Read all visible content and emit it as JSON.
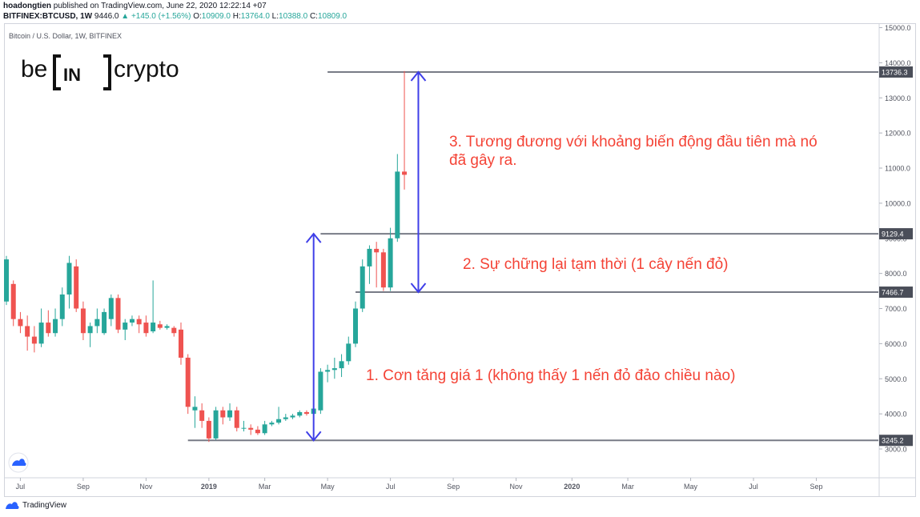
{
  "header": {
    "line1_user": "hoadongtien",
    "line1_rest": "published on TradingView.com, June 22, 2020 12:22:14 +07",
    "symbol": "BITFINEX:BTCUSD, 1W",
    "price": "9446.0",
    "change": "+145.0 (+1.56%)",
    "o_label": "O:",
    "o_value": "10909.0",
    "h_label": "H:",
    "h_value": "13764.0",
    "l_label": "L:",
    "l_value": "10388.0",
    "c_label": "C:",
    "c_value": "10809.0"
  },
  "chart_title": "Bitcoin / U.S. Dollar, 1W, BITFINEX",
  "logo": {
    "left": "be",
    "middle": "IN",
    "right": "crypto"
  },
  "footer": {
    "brand": "TradingView"
  },
  "annotations": {
    "note1": "1. Cơn tăng giá 1 (không thấy 1 nến đỏ đảo chiều nào)",
    "note2": "2. Sự chững lại tạm thời (1 cây nến đỏ)",
    "note3_line1": "3. Tương đương với khoảng biến động đầu tiên mà nó",
    "note3_line2": "đã gây ra."
  },
  "colors": {
    "up": "#26a69a",
    "down": "#ef5350",
    "arrow": "#3f3fe8",
    "level": "#787b86",
    "note": "#f44336"
  },
  "chart_data": {
    "type": "candlestick",
    "title": "Bitcoin / U.S. Dollar, 1W, BITFINEX",
    "ylim": [
      2600,
      15200
    ],
    "y_ticks": [
      3000,
      4000,
      5000,
      6000,
      7000,
      8000,
      9000,
      10000,
      11000,
      12000,
      13000,
      14000,
      15000
    ],
    "y_tick_labels": [
      "3000.0",
      "4000.0",
      "5000.0",
      "6000.0",
      "7000.0",
      "8000.0",
      "9000.0",
      "10000.0",
      "11000.0",
      "12000.0",
      "13000.0",
      "14000.0",
      "15000.0"
    ],
    "x_ticks": [
      "Jul",
      "Sep",
      "Nov",
      "2019",
      "Mar",
      "May",
      "Jul",
      "Sep",
      "Nov",
      "2020",
      "Mar",
      "May",
      "Jul",
      "Sep"
    ],
    "x_tick_weeks": [
      2,
      11,
      20,
      29,
      37,
      46,
      55,
      64,
      73,
      81,
      89,
      98,
      107,
      116
    ],
    "grid": false,
    "levels": [
      {
        "value": 13736.3,
        "label": "13736.3",
        "from_week": 46
      },
      {
        "value": 9129.4,
        "label": "9129.4",
        "from_week": 45
      },
      {
        "value": 7466.7,
        "label": "7466.7",
        "from_week": 50
      },
      {
        "value": 3245.2,
        "label": "3245.2",
        "from_week": 26
      }
    ],
    "arrows": [
      {
        "week": 44,
        "from": 3245.2,
        "to": 9129.4
      },
      {
        "week": 59,
        "from": 7466.7,
        "to": 13736.3
      }
    ],
    "candles": [
      {
        "o": 7200,
        "h": 8500,
        "l": 7100,
        "c": 8400
      },
      {
        "o": 7700,
        "h": 7800,
        "l": 6500,
        "c": 6700
      },
      {
        "o": 6700,
        "h": 6900,
        "l": 6300,
        "c": 6500
      },
      {
        "o": 6500,
        "h": 6800,
        "l": 5800,
        "c": 6200
      },
      {
        "o": 6200,
        "h": 6500,
        "l": 5750,
        "c": 6000
      },
      {
        "o": 6000,
        "h": 7000,
        "l": 5900,
        "c": 6600
      },
      {
        "o": 6600,
        "h": 6950,
        "l": 6200,
        "c": 6300
      },
      {
        "o": 6300,
        "h": 7000,
        "l": 6200,
        "c": 6700
      },
      {
        "o": 6700,
        "h": 7600,
        "l": 6500,
        "c": 7400
      },
      {
        "o": 7400,
        "h": 8500,
        "l": 7000,
        "c": 8300
      },
      {
        "o": 8200,
        "h": 8400,
        "l": 6900,
        "c": 7000
      },
      {
        "o": 7000,
        "h": 7200,
        "l": 6100,
        "c": 6300
      },
      {
        "o": 6300,
        "h": 6600,
        "l": 5900,
        "c": 6500
      },
      {
        "o": 6500,
        "h": 7000,
        "l": 6300,
        "c": 6700
      },
      {
        "o": 6300,
        "h": 7000,
        "l": 6250,
        "c": 6900
      },
      {
        "o": 6700,
        "h": 7400,
        "l": 6500,
        "c": 7300
      },
      {
        "o": 7300,
        "h": 7400,
        "l": 6300,
        "c": 6400
      },
      {
        "o": 6400,
        "h": 6700,
        "l": 6100,
        "c": 6600
      },
      {
        "o": 6600,
        "h": 6800,
        "l": 6500,
        "c": 6700
      },
      {
        "o": 6700,
        "h": 6800,
        "l": 6300,
        "c": 6550
      },
      {
        "o": 6600,
        "h": 6800,
        "l": 6200,
        "c": 6300
      },
      {
        "o": 6350,
        "h": 7800,
        "l": 6300,
        "c": 6600
      },
      {
        "o": 6550,
        "h": 6650,
        "l": 6400,
        "c": 6450
      },
      {
        "o": 6450,
        "h": 6550,
        "l": 6400,
        "c": 6500
      },
      {
        "o": 6450,
        "h": 6500,
        "l": 6200,
        "c": 6300
      },
      {
        "o": 6400,
        "h": 6600,
        "l": 5400,
        "c": 5600
      },
      {
        "o": 5600,
        "h": 5700,
        "l": 4000,
        "c": 4200
      },
      {
        "o": 4100,
        "h": 4500,
        "l": 3600,
        "c": 4200
      },
      {
        "o": 4100,
        "h": 4300,
        "l": 3600,
        "c": 3800
      },
      {
        "o": 3800,
        "h": 3900,
        "l": 3200,
        "c": 3300
      },
      {
        "o": 3300,
        "h": 4200,
        "l": 3250,
        "c": 4100
      },
      {
        "o": 4100,
        "h": 4200,
        "l": 3700,
        "c": 3900
      },
      {
        "o": 3900,
        "h": 4300,
        "l": 3800,
        "c": 4100
      },
      {
        "o": 4100,
        "h": 4200,
        "l": 3500,
        "c": 3600
      },
      {
        "o": 3600,
        "h": 3800,
        "l": 3500,
        "c": 3600
      },
      {
        "o": 3600,
        "h": 3700,
        "l": 3400,
        "c": 3550
      },
      {
        "o": 3550,
        "h": 3650,
        "l": 3400,
        "c": 3450
      },
      {
        "o": 3450,
        "h": 3800,
        "l": 3400,
        "c": 3700
      },
      {
        "o": 3700,
        "h": 3800,
        "l": 3650,
        "c": 3750
      },
      {
        "o": 3750,
        "h": 4200,
        "l": 3700,
        "c": 3850
      },
      {
        "o": 3850,
        "h": 4000,
        "l": 3800,
        "c": 3900
      },
      {
        "o": 3900,
        "h": 4000,
        "l": 3850,
        "c": 3950
      },
      {
        "o": 3950,
        "h": 4100,
        "l": 3900,
        "c": 4050
      },
      {
        "o": 4050,
        "h": 4100,
        "l": 3950,
        "c": 4000
      },
      {
        "o": 4000,
        "h": 4200,
        "l": 3950,
        "c": 4150
      },
      {
        "o": 4100,
        "h": 5300,
        "l": 4000,
        "c": 5200
      },
      {
        "o": 5200,
        "h": 5400,
        "l": 4900,
        "c": 5250
      },
      {
        "o": 5250,
        "h": 5600,
        "l": 5000,
        "c": 5300
      },
      {
        "o": 5300,
        "h": 5700,
        "l": 5050,
        "c": 5500
      },
      {
        "o": 5500,
        "h": 6200,
        "l": 5400,
        "c": 6000
      },
      {
        "o": 6000,
        "h": 7200,
        "l": 5900,
        "c": 7000
      },
      {
        "o": 7000,
        "h": 8400,
        "l": 6900,
        "c": 8200
      },
      {
        "o": 8200,
        "h": 8800,
        "l": 7700,
        "c": 8700
      },
      {
        "o": 8700,
        "h": 8900,
        "l": 7600,
        "c": 8600
      },
      {
        "o": 8600,
        "h": 8700,
        "l": 7500,
        "c": 7600
      },
      {
        "o": 7600,
        "h": 9300,
        "l": 7500,
        "c": 9000
      },
      {
        "o": 9000,
        "h": 11400,
        "l": 8900,
        "c": 10900
      },
      {
        "o": 10900,
        "h": 13764,
        "l": 10388,
        "c": 10809
      }
    ]
  }
}
